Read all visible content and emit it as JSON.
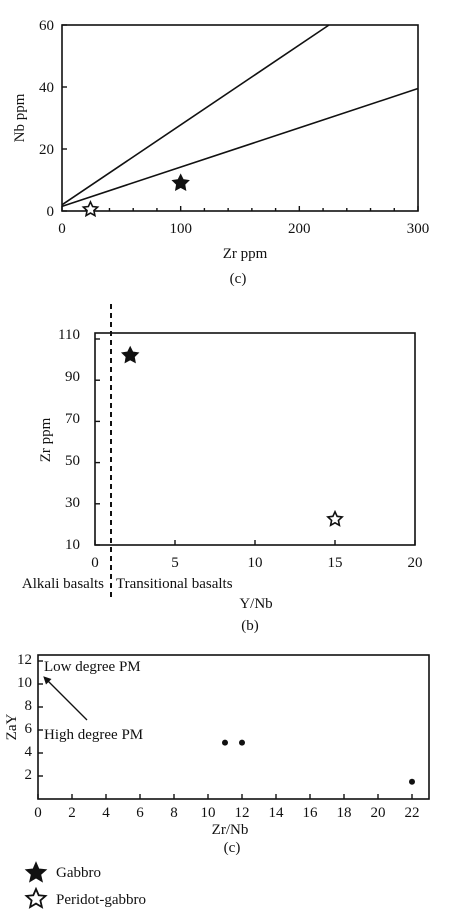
{
  "chart_data": [
    {
      "id": "zr-nb",
      "type": "scatter",
      "panel_label": "(c)",
      "xlabel": "Zr ppm",
      "ylabel": "Nb ppm",
      "xlim": [
        0,
        300
      ],
      "ylim": [
        0,
        60
      ],
      "xticks": [
        0,
        100,
        200,
        300
      ],
      "yticks": [
        0,
        20,
        40,
        60
      ],
      "grid": false,
      "lines": [
        {
          "x": [
            0,
            225
          ],
          "y": [
            2,
            60
          ]
        },
        {
          "x": [
            0,
            300
          ],
          "y": [
            1.5,
            39.5
          ]
        }
      ],
      "series": [
        {
          "name": "Gabbro",
          "marker": "filled-star",
          "points": [
            [
              100,
              9
            ]
          ]
        },
        {
          "name": "Peridot-gabbro",
          "marker": "open-star",
          "points": [
            [
              24,
              0.5
            ]
          ]
        }
      ]
    },
    {
      "id": "ynb-zr",
      "type": "scatter",
      "panel_label": "(b)",
      "xlabel": "Y/Nb",
      "ylabel": "Zr ppm",
      "xlim": [
        -1,
        20
      ],
      "ylim": [
        10,
        112
      ],
      "xticks": [
        0,
        5,
        10,
        15,
        20
      ],
      "yticks": [
        10,
        30,
        50,
        70,
        90,
        110
      ],
      "grid": false,
      "divider_x": 1,
      "divider_style": "dashed",
      "region_labels": [
        "Alkali basalts",
        "Transitional basalts"
      ],
      "series": [
        {
          "name": "Gabbro",
          "marker": "filled-star",
          "points": [
            [
              2.2,
              102
            ]
          ]
        },
        {
          "name": "Peridot-gabbro",
          "marker": "open-star",
          "points": [
            [
              15,
              22.5
            ]
          ]
        }
      ]
    },
    {
      "id": "zrnb-zay",
      "type": "scatter",
      "panel_label": "(c)",
      "xlabel": "Zr/Nb",
      "ylabel": "ZaY",
      "xlim": [
        0,
        23
      ],
      "ylim": [
        0,
        12.4
      ],
      "xticks": [
        0,
        2,
        4,
        6,
        8,
        10,
        12,
        14,
        16,
        18,
        20,
        22
      ],
      "yticks": [
        2,
        4,
        6,
        8,
        10,
        12
      ],
      "grid": false,
      "annotations": [
        "Low degree PM",
        "High degree PM"
      ],
      "series": [
        {
          "name": "",
          "marker": "dot",
          "points": [
            [
              11,
              4.9
            ],
            [
              12,
              4.9
            ],
            [
              22,
              1.5
            ]
          ]
        }
      ]
    }
  ],
  "legend": {
    "placement": "bottom-left",
    "items": [
      {
        "label": "Gabbro",
        "icon": "filled-star-icon"
      },
      {
        "label": "Peridot-gabbro",
        "icon": "open-star-icon"
      }
    ]
  }
}
